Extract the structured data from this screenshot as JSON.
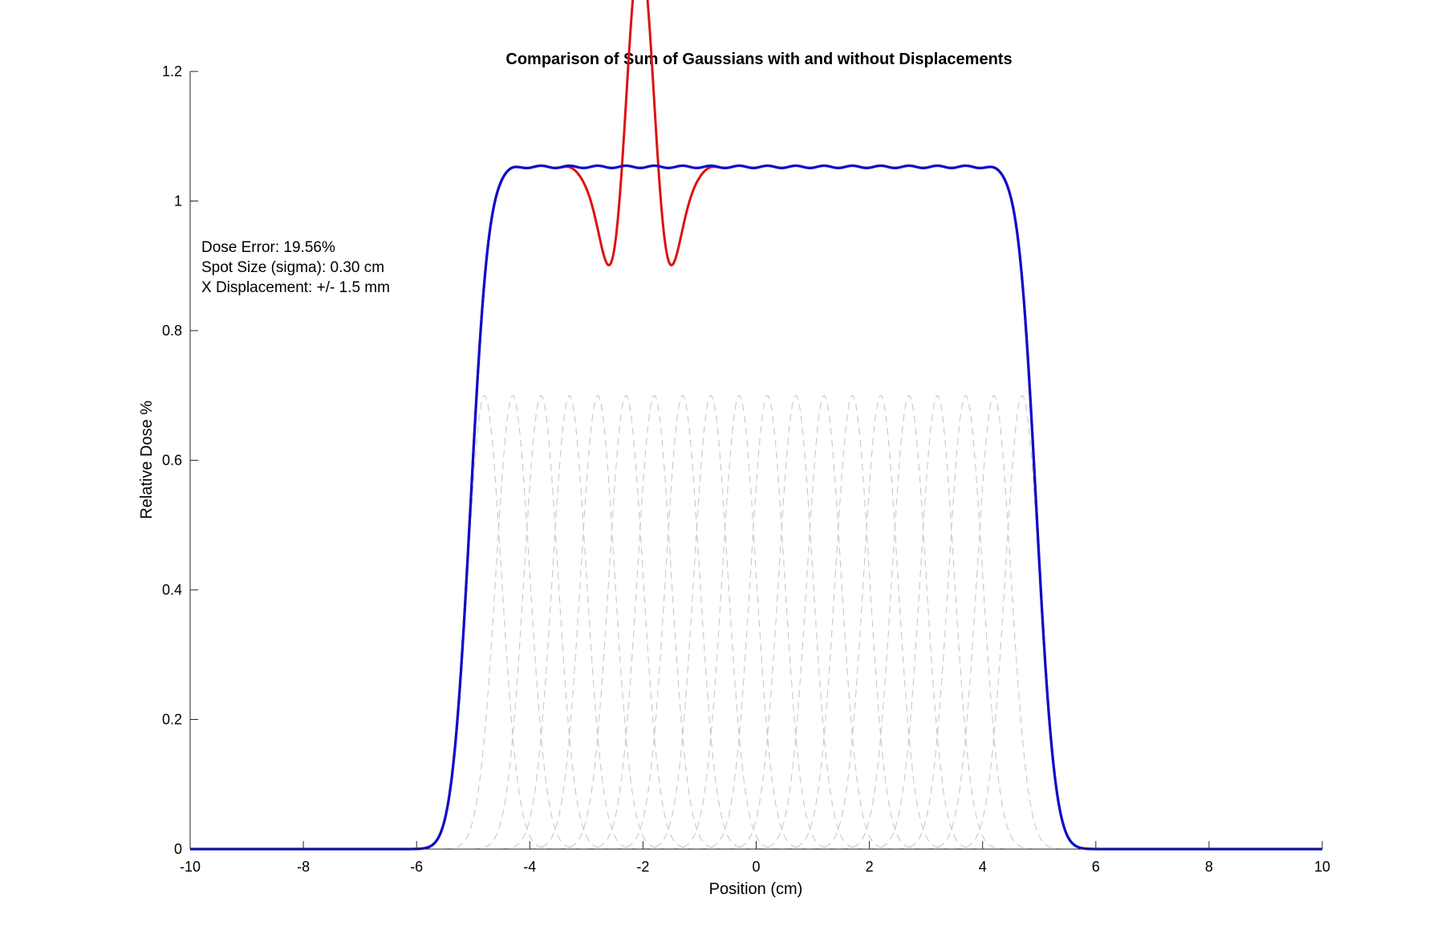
{
  "chart_data": {
    "type": "line",
    "title": "Comparison of Sum of Gaussians with and without Displacements",
    "xlabel": "Position (cm)",
    "ylabel": "Relative Dose %",
    "xlim": [
      -10,
      10
    ],
    "ylim": [
      0,
      1.2
    ],
    "xticks": [
      "-10",
      "-8",
      "-6",
      "-4",
      "-2",
      "0",
      "2",
      "4",
      "6",
      "8",
      "10"
    ],
    "yticks": [
      "0",
      "0.2",
      "0.4",
      "0.6",
      "0.8",
      "1",
      "1.2"
    ],
    "grid": false,
    "legend": "none",
    "annotations": [
      "Dose Error: 19.56%",
      "Spot Size (sigma): 0.30 cm",
      "X Displacement: +/- 1.5 mm"
    ],
    "spot_sigma_cm": 0.3,
    "displacement_cm": 0.15,
    "individual_spot_peak": 0.7,
    "spot_centers": [
      -4.8,
      -4.3,
      -3.8,
      -3.3,
      -2.8,
      -2.3,
      -1.8,
      -1.3,
      -0.8,
      -0.3,
      0.2,
      0.7,
      1.2,
      1.7,
      2.2,
      2.7,
      3.2,
      3.7,
      4.2,
      4.7
    ],
    "displaced_spots": [
      {
        "index": 5,
        "shift_cm": 0.15
      },
      {
        "index": 6,
        "shift_cm": -0.15
      }
    ],
    "colors": {
      "nominal": "#0b0bcc",
      "displaced": "#dd1111",
      "individual": "#c8c8c8"
    },
    "series": [
      {
        "key": "individual",
        "style": "dashed"
      },
      {
        "key": "displaced",
        "style": "solid"
      },
      {
        "key": "nominal",
        "style": "solid"
      }
    ]
  }
}
